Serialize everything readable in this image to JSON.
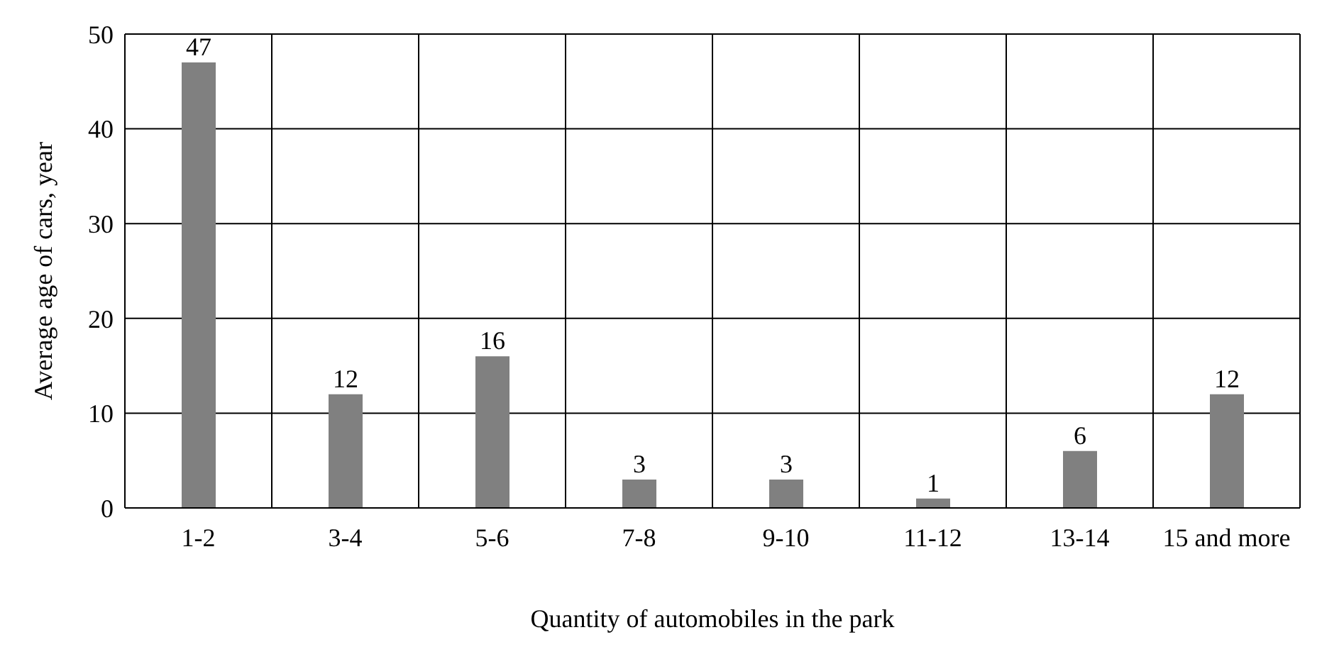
{
  "chart_data": {
    "type": "bar",
    "xlabel": "Quantity of automobiles in the park",
    "ylabel": "Average age of cars,  year",
    "categories": [
      "1-2",
      "3-4",
      "5-6",
      "7-8",
      "9-10",
      "11-12",
      "13-14",
      "15 and more"
    ],
    "values": [
      47,
      12,
      16,
      3,
      3,
      1,
      6,
      12
    ],
    "color": "#808080",
    "ylim": [
      0,
      50
    ],
    "yticks": [
      0,
      10,
      20,
      30,
      40,
      50
    ],
    "grid": true,
    "data_labels": true
  }
}
